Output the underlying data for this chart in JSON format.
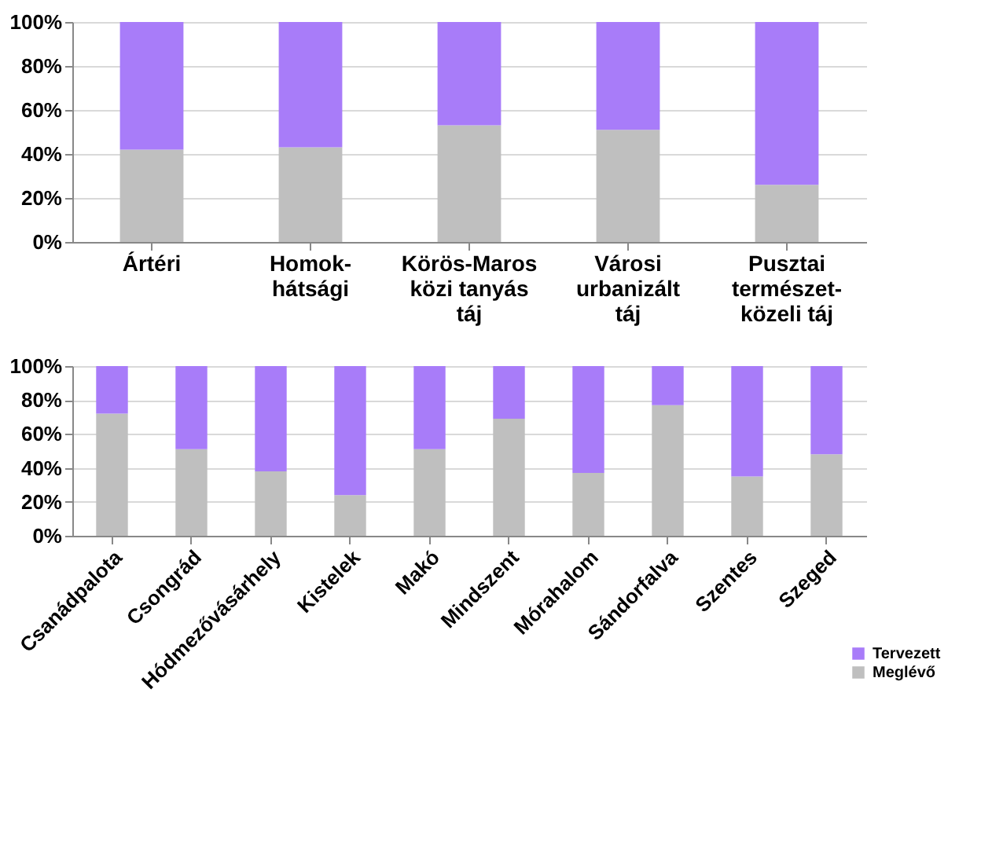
{
  "chart_data": [
    {
      "type": "bar",
      "stacked": true,
      "categories": [
        "Ártéri",
        "Homok-\nhátsági",
        "Körös-Maros\nközi tanyás\ntáj",
        "Városi\nurbanizált\ntáj",
        "Pusztai\ntermészet-\nközeli táj"
      ],
      "series": [
        {
          "color": "#bfbfbf",
          "values": [
            42,
            43,
            53,
            51,
            26
          ]
        },
        {
          "color": "#a87cf9",
          "values": [
            58,
            57,
            47,
            49,
            74
          ]
        }
      ],
      "ylim": [
        0,
        100
      ],
      "yticks": [
        {
          "value": 0,
          "label": "0%"
        },
        {
          "value": 20,
          "label": "20%"
        },
        {
          "value": 40,
          "label": "40%"
        },
        {
          "value": 60,
          "label": "60%"
        },
        {
          "value": 80,
          "label": "80%"
        },
        {
          "value": 100,
          "label": "100%"
        }
      ],
      "grid": "y",
      "legend": false
    },
    {
      "type": "bar",
      "stacked": true,
      "categories": [
        "Csanádpalota",
        "Csongrád",
        "Hódmezővásárhely",
        "Kistelek",
        "Makó",
        "Mindszent",
        "Mórahalom",
        "Sándorfalva",
        "Szentes",
        "Szeged"
      ],
      "series": [
        {
          "name": "Meglévő",
          "color": "#bfbfbf",
          "values": [
            72,
            51,
            38,
            24,
            51,
            69,
            37,
            77,
            35,
            48
          ]
        },
        {
          "name": "Tervezett",
          "color": "#a87cf9",
          "values": [
            28,
            49,
            62,
            76,
            49,
            31,
            63,
            23,
            65,
            52
          ]
        }
      ],
      "ylim": [
        0,
        100
      ],
      "yticks": [
        {
          "value": 0,
          "label": "0%"
        },
        {
          "value": 20,
          "label": "20%"
        },
        {
          "value": 40,
          "label": "40%"
        },
        {
          "value": 60,
          "label": "60%"
        },
        {
          "value": 80,
          "label": "80%"
        },
        {
          "value": 100,
          "label": "100%"
        }
      ],
      "grid": "y",
      "legend": "bottom right"
    }
  ]
}
